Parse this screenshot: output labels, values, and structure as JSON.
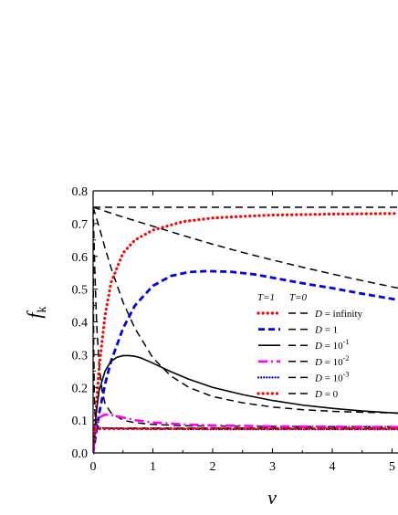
{
  "chart_data": {
    "type": "line",
    "xlabel": "v",
    "ylabel_main": "f",
    "ylabel_sub": "k",
    "xlim": [
      0,
      5.1
    ],
    "ylim": [
      0.0,
      0.8
    ],
    "x_ticks": [
      "0",
      "1",
      "2",
      "3",
      "4",
      "5"
    ],
    "x_tick_values": [
      0,
      1,
      2,
      3,
      4,
      5
    ],
    "y_ticks": [
      "0.0",
      "0.1",
      "0.2",
      "0.3",
      "0.4",
      "0.5",
      "0.6",
      "0.7",
      "0.8"
    ],
    "y_tick_values": [
      0.0,
      0.1,
      0.2,
      0.3,
      0.4,
      0.5,
      0.6,
      0.7,
      0.8
    ],
    "grid": false,
    "legend": {
      "placement": "right",
      "header_t1": "T=1",
      "header_t0": "T=0",
      "entries": [
        {
          "label": "D = infinity",
          "t1_color": "#ff0000",
          "t1_dash": "dot"
        },
        {
          "label": "D = 1",
          "t1_color": "#0000ee",
          "t1_dash": "dash"
        },
        {
          "label": "D = 10",
          "sup": "-1",
          "t1_color": "#000000",
          "t1_dash": "solid"
        },
        {
          "label": "D = 10",
          "sup": "-2",
          "t1_color": "#ff00ff",
          "t1_dash": "dashdot"
        },
        {
          "label": "D = 10",
          "sup": "-3",
          "t1_color": "#0000aa",
          "t1_dash": "fine-dot"
        },
        {
          "label": "D = 0",
          "t1_color": "#ff0000",
          "t1_dash": "dot"
        }
      ]
    },
    "series": [
      {
        "group": "T=1",
        "legend_index": 0,
        "color": "#ff0000",
        "dash": "dot",
        "x": [
          0,
          0.1,
          0.2,
          0.3,
          0.5,
          0.7,
          1.0,
          1.5,
          2.0,
          2.5,
          3.0,
          4.0,
          5.1
        ],
        "y": [
          0,
          0.26,
          0.42,
          0.52,
          0.61,
          0.65,
          0.68,
          0.706,
          0.717,
          0.722,
          0.726,
          0.729,
          0.731
        ]
      },
      {
        "group": "T=1",
        "legend_index": 1,
        "color": "#0000ee",
        "dash": "dash",
        "x": [
          0,
          0.1,
          0.2,
          0.3,
          0.5,
          0.7,
          1.0,
          1.3,
          1.6,
          1.9,
          2.3,
          2.7,
          3.0,
          3.5,
          4.0,
          4.5,
          5.1
        ],
        "y": [
          0,
          0.12,
          0.21,
          0.28,
          0.38,
          0.45,
          0.51,
          0.54,
          0.552,
          0.555,
          0.553,
          0.545,
          0.535,
          0.518,
          0.503,
          0.486,
          0.467
        ]
      },
      {
        "group": "T=1",
        "legend_index": 2,
        "color": "#000000",
        "dash": "solid",
        "x": [
          0,
          0.05,
          0.1,
          0.2,
          0.3,
          0.4,
          0.5,
          0.6,
          0.7,
          0.8,
          1.0,
          1.3,
          1.6,
          2.0,
          2.5,
          3.0,
          3.5,
          4.0,
          4.5,
          5.1
        ],
        "y": [
          0,
          0.12,
          0.19,
          0.25,
          0.28,
          0.292,
          0.297,
          0.297,
          0.295,
          0.29,
          0.274,
          0.248,
          0.225,
          0.2,
          0.178,
          0.16,
          0.146,
          0.136,
          0.128,
          0.121
        ]
      },
      {
        "group": "T=1",
        "legend_index": 3,
        "color": "#ff00ff",
        "dash": "dashdot",
        "x": [
          0,
          0.05,
          0.1,
          0.2,
          0.3,
          0.5,
          0.7,
          1.0,
          1.5,
          2.0,
          3.0,
          4.0,
          5.1
        ],
        "y": [
          0,
          0.085,
          0.108,
          0.117,
          0.116,
          0.108,
          0.1,
          0.093,
          0.087,
          0.084,
          0.081,
          0.08,
          0.079
        ]
      },
      {
        "group": "T=1",
        "legend_index": 4,
        "color": "#0000aa",
        "dash": "fine-dot",
        "x": [
          0,
          0.02,
          0.05,
          0.1,
          0.2,
          0.3,
          0.5,
          1.0,
          2.0,
          3.0,
          4.0,
          5.1
        ],
        "y": [
          0,
          0.055,
          0.072,
          0.076,
          0.076,
          0.075,
          0.074,
          0.073,
          0.072,
          0.072,
          0.072,
          0.072
        ]
      },
      {
        "group": "T=1",
        "legend_index": 5,
        "color": "#ff0000",
        "dash": "dot",
        "x": [
          0,
          0.01,
          0.03,
          0.06,
          0.1,
          0.5,
          1.0,
          2.0,
          3.0,
          4.0,
          5.1
        ],
        "y": [
          0,
          0.055,
          0.068,
          0.072,
          0.074,
          0.074,
          0.074,
          0.074,
          0.074,
          0.074,
          0.074
        ]
      },
      {
        "group": "T=0",
        "legend_index": 0,
        "color": "#000000",
        "dash": "dash",
        "x": [
          0,
          5.1
        ],
        "y": [
          0.75,
          0.75
        ]
      },
      {
        "group": "T=0",
        "legend_index": 1,
        "color": "#000000",
        "dash": "dash",
        "x": [
          0,
          0.5,
          1.0,
          1.5,
          2.0,
          2.5,
          3.0,
          3.5,
          4.0,
          4.5,
          5.1
        ],
        "y": [
          0.75,
          0.72,
          0.692,
          0.664,
          0.637,
          0.612,
          0.589,
          0.567,
          0.546,
          0.526,
          0.503
        ]
      },
      {
        "group": "T=0",
        "legend_index": 2,
        "color": "#000000",
        "dash": "dash",
        "x": [
          0,
          0.1,
          0.2,
          0.3,
          0.5,
          0.7,
          1.0,
          1.3,
          1.6,
          2.0,
          2.5,
          3.0,
          3.5,
          4.0,
          4.5,
          5.1
        ],
        "y": [
          0.75,
          0.69,
          0.625,
          0.565,
          0.46,
          0.38,
          0.29,
          0.235,
          0.2,
          0.172,
          0.153,
          0.14,
          0.132,
          0.127,
          0.124,
          0.122
        ]
      },
      {
        "group": "T=0",
        "legend_index": 3,
        "color": "#000000",
        "dash": "dash",
        "x": [
          0,
          0.03,
          0.06,
          0.1,
          0.15,
          0.2,
          0.3,
          0.5,
          0.7,
          1.0,
          1.5,
          2.0,
          3.0,
          4.0,
          5.1
        ],
        "y": [
          0.75,
          0.55,
          0.39,
          0.27,
          0.19,
          0.15,
          0.122,
          0.1,
          0.092,
          0.087,
          0.083,
          0.082,
          0.081,
          0.08,
          0.08
        ]
      },
      {
        "group": "T=0",
        "legend_index": 4,
        "color": "#000000",
        "dash": "dash",
        "x": [
          0,
          0.005,
          0.01,
          0.02,
          0.03,
          0.05,
          0.08,
          0.12,
          0.2,
          0.5,
          1.0,
          3.0,
          5.1
        ],
        "y": [
          0.75,
          0.5,
          0.33,
          0.18,
          0.12,
          0.09,
          0.081,
          0.078,
          0.076,
          0.075,
          0.075,
          0.075,
          0.075
        ]
      },
      {
        "group": "T=0",
        "legend_index": 5,
        "color": "#000000",
        "dash": "dash",
        "x": [
          0.01,
          0.02,
          0.05,
          0.1,
          0.5,
          1.0,
          2.0,
          3.0,
          4.0,
          5.1
        ],
        "y": [
          0.078,
          0.077,
          0.076,
          0.076,
          0.076,
          0.076,
          0.076,
          0.076,
          0.076,
          0.076
        ]
      }
    ]
  }
}
